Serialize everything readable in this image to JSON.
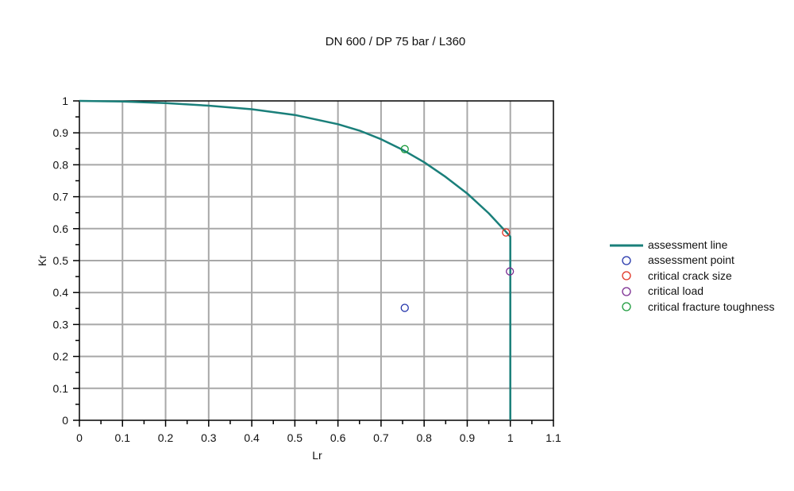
{
  "chart_data": {
    "type": "line",
    "title": "DN 600 / DP 75 bar / L360",
    "xlabel": "Lr",
    "ylabel": "Kr",
    "xlim": [
      0,
      1.1
    ],
    "ylim": [
      0,
      1
    ],
    "x_ticks": [
      "0",
      "0.1",
      "0.2",
      "0.3",
      "0.4",
      "0.5",
      "0.6",
      "0.7",
      "0.8",
      "0.9",
      "1",
      "1.1"
    ],
    "y_ticks": [
      "0",
      "0.1",
      "0.2",
      "0.3",
      "0.4",
      "0.5",
      "0.6",
      "0.7",
      "0.8",
      "0.9",
      "1"
    ],
    "grid": true,
    "legend_position": "right",
    "series": [
      {
        "name": "assessment line",
        "kind": "line",
        "color": "#1a7f7a",
        "x": [
          0,
          0.1,
          0.2,
          0.3,
          0.4,
          0.5,
          0.6,
          0.65,
          0.7,
          0.75,
          0.8,
          0.85,
          0.9,
          0.95,
          0.99,
          1.0,
          1.0
        ],
        "y": [
          1.0,
          0.998,
          0.993,
          0.985,
          0.974,
          0.956,
          0.927,
          0.907,
          0.88,
          0.847,
          0.808,
          0.762,
          0.71,
          0.648,
          0.59,
          0.575,
          0
        ]
      },
      {
        "name": "assessment point",
        "kind": "point",
        "color": "#2233aa",
        "x": [
          0.755
        ],
        "y": [
          0.352
        ]
      },
      {
        "name": "critical crack size",
        "kind": "point",
        "color": "#e03020",
        "x": [
          0.99
        ],
        "y": [
          0.588
        ]
      },
      {
        "name": "critical load",
        "kind": "point",
        "color": "#7a2a90",
        "x": [
          0.999
        ],
        "y": [
          0.466
        ]
      },
      {
        "name": "critical fracture toughness",
        "kind": "point",
        "color": "#1a9a3a",
        "x": [
          0.755
        ],
        "y": [
          0.849
        ]
      }
    ]
  }
}
